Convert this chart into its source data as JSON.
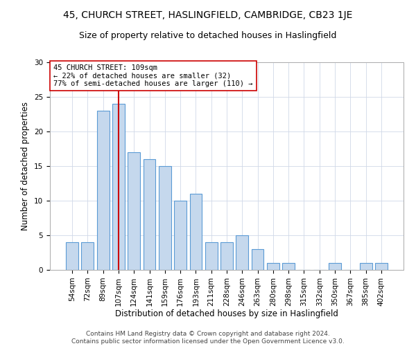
{
  "title1": "45, CHURCH STREET, HASLINGFIELD, CAMBRIDGE, CB23 1JE",
  "title2": "Size of property relative to detached houses in Haslingfield",
  "xlabel": "Distribution of detached houses by size in Haslingfield",
  "ylabel": "Number of detached properties",
  "categories": [
    "54sqm",
    "72sqm",
    "89sqm",
    "107sqm",
    "124sqm",
    "141sqm",
    "159sqm",
    "176sqm",
    "193sqm",
    "211sqm",
    "228sqm",
    "246sqm",
    "263sqm",
    "280sqm",
    "298sqm",
    "315sqm",
    "332sqm",
    "350sqm",
    "367sqm",
    "385sqm",
    "402sqm"
  ],
  "values": [
    4,
    4,
    23,
    24,
    17,
    16,
    15,
    10,
    11,
    4,
    4,
    5,
    3,
    1,
    1,
    0,
    0,
    1,
    0,
    1,
    1
  ],
  "bar_color": "#c5d8ed",
  "bar_edge_color": "#5b9bd5",
  "vline_x": 3.0,
  "vline_color": "#cc0000",
  "annotation_line1": "45 CHURCH STREET: 109sqm",
  "annotation_line2": "← 22% of detached houses are smaller (32)",
  "annotation_line3": "77% of semi-detached houses are larger (110) →",
  "annotation_box_color": "white",
  "annotation_box_edge_color": "#cc0000",
  "ylim": [
    0,
    30
  ],
  "yticks": [
    0,
    5,
    10,
    15,
    20,
    25,
    30
  ],
  "footer1": "Contains HM Land Registry data © Crown copyright and database right 2024.",
  "footer2": "Contains public sector information licensed under the Open Government Licence v3.0.",
  "title1_fontsize": 10,
  "title2_fontsize": 9,
  "xlabel_fontsize": 8.5,
  "ylabel_fontsize": 8.5,
  "tick_fontsize": 7.5,
  "annotation_fontsize": 7.5,
  "footer_fontsize": 6.5
}
